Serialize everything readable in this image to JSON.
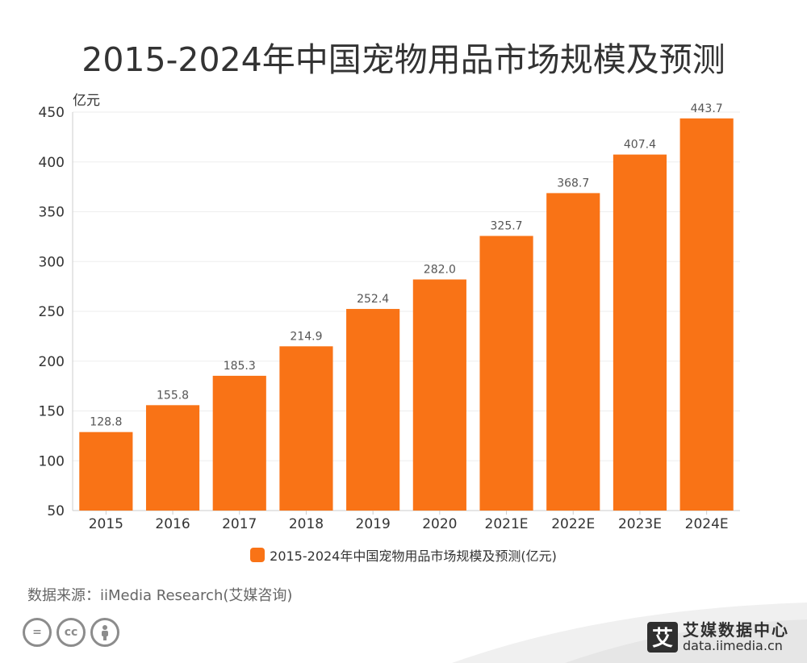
{
  "title": "2015-2024年中国宠物用品市场规模及预测",
  "source": "数据来源：iiMedia Research(艾媒咨询)",
  "brand": {
    "mark": "艾",
    "name": "艾媒数据中心",
    "url": "data.iimedia.cn"
  },
  "colors": {
    "bar": "#f97316",
    "axis": "#cccccc",
    "grid": "#eeeeee",
    "text": "#333333"
  },
  "chart_data": {
    "type": "bar",
    "title": "2015-2024年中国宠物用品市场规模及预测",
    "ylabel": "亿元",
    "xlabel": "",
    "categories": [
      "2015",
      "2016",
      "2017",
      "2018",
      "2019",
      "2020",
      "2021E",
      "2022E",
      "2023E",
      "2024E"
    ],
    "series": [
      {
        "name": "2015-2024年中国宠物用品市场规模及预测(亿元)",
        "values": [
          128.8,
          155.8,
          185.3,
          214.9,
          252.4,
          282.0,
          325.7,
          368.7,
          407.4,
          443.7
        ],
        "labels": [
          "128.8",
          "155.8",
          "185.3",
          "214.9",
          "252.4",
          "282.0",
          "325.7",
          "368.7",
          "407.4",
          "443.7"
        ]
      }
    ],
    "ylim": [
      50,
      450
    ],
    "yticks": [
      "50",
      "100",
      "150",
      "200",
      "250",
      "300",
      "350",
      "400",
      "450"
    ],
    "grid": true,
    "legend": "bottom"
  }
}
